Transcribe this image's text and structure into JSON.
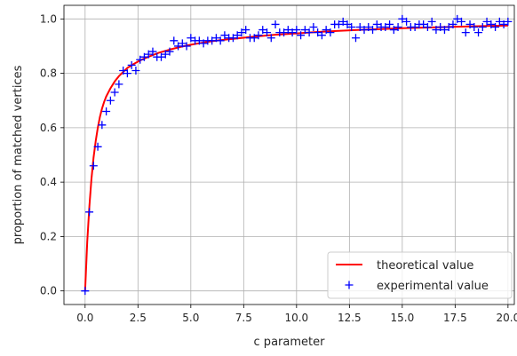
{
  "chart_data": {
    "type": "line",
    "xlabel": "c parameter",
    "ylabel": "proportion of matched vertices",
    "xlim": [
      -1,
      20.3
    ],
    "ylim": [
      -0.05,
      1.05
    ],
    "xticks": [
      0.0,
      2.5,
      5.0,
      7.5,
      10.0,
      12.5,
      15.0,
      17.5,
      20.0
    ],
    "xtick_labels": [
      "0.0",
      "2.5",
      "5.0",
      "7.5",
      "10.0",
      "12.5",
      "15.0",
      "17.5",
      "20.0"
    ],
    "yticks": [
      0.0,
      0.2,
      0.4,
      0.6,
      0.8,
      1.0
    ],
    "ytick_labels": [
      "0.0",
      "0.2",
      "0.4",
      "0.6",
      "0.8",
      "1.0"
    ],
    "grid": true,
    "legend_position": "bottom-right",
    "series": [
      {
        "name": "theoretical value",
        "style": "line",
        "color": "#ff0000",
        "x": [
          0.0,
          0.1,
          0.2,
          0.3,
          0.4,
          0.5,
          0.6,
          0.7,
          0.8,
          0.9,
          1.0,
          1.2,
          1.4,
          1.6,
          1.8,
          2.0,
          2.25,
          2.5,
          2.75,
          3.0,
          3.5,
          4.0,
          4.5,
          5.0,
          5.5,
          6.0,
          7.0,
          8.0,
          9.0,
          10.0,
          11.0,
          12.0,
          13.0,
          14.0,
          15.0,
          16.0,
          17.0,
          18.0,
          19.0,
          20.0
        ],
        "y": [
          0.0,
          0.18,
          0.31,
          0.41,
          0.49,
          0.55,
          0.6,
          0.64,
          0.67,
          0.695,
          0.715,
          0.745,
          0.77,
          0.79,
          0.805,
          0.82,
          0.832,
          0.843,
          0.853,
          0.861,
          0.876,
          0.887,
          0.897,
          0.905,
          0.912,
          0.918,
          0.927,
          0.935,
          0.942,
          0.947,
          0.952,
          0.956,
          0.96,
          0.963,
          0.966,
          0.968,
          0.97,
          0.972,
          0.974,
          0.976
        ]
      },
      {
        "name": "experimental value",
        "style": "marker-plus",
        "color": "#0000ff",
        "x": [
          0.0,
          0.2,
          0.4,
          0.6,
          0.8,
          1.0,
          1.2,
          1.4,
          1.6,
          1.8,
          2.0,
          2.2,
          2.4,
          2.6,
          2.8,
          3.0,
          3.2,
          3.4,
          3.6,
          3.8,
          4.0,
          4.2,
          4.4,
          4.6,
          4.8,
          5.0,
          5.2,
          5.4,
          5.6,
          5.8,
          6.0,
          6.2,
          6.4,
          6.6,
          6.8,
          7.0,
          7.2,
          7.4,
          7.6,
          7.8,
          8.0,
          8.2,
          8.4,
          8.6,
          8.8,
          9.0,
          9.2,
          9.4,
          9.6,
          9.8,
          10.0,
          10.2,
          10.4,
          10.6,
          10.8,
          11.0,
          11.2,
          11.4,
          11.6,
          11.8,
          12.0,
          12.2,
          12.4,
          12.6,
          12.8,
          13.0,
          13.2,
          13.4,
          13.6,
          13.8,
          14.0,
          14.2,
          14.4,
          14.6,
          14.8,
          15.0,
          15.2,
          15.4,
          15.6,
          15.8,
          16.0,
          16.2,
          16.4,
          16.6,
          16.8,
          17.0,
          17.2,
          17.4,
          17.6,
          17.8,
          18.0,
          18.2,
          18.4,
          18.6,
          18.8,
          19.0,
          19.2,
          19.4,
          19.6,
          19.8,
          20.0
        ],
        "y": [
          0.0,
          0.29,
          0.46,
          0.53,
          0.61,
          0.66,
          0.7,
          0.73,
          0.76,
          0.81,
          0.8,
          0.83,
          0.81,
          0.85,
          0.86,
          0.87,
          0.88,
          0.86,
          0.86,
          0.87,
          0.88,
          0.92,
          0.9,
          0.91,
          0.9,
          0.93,
          0.92,
          0.92,
          0.91,
          0.92,
          0.92,
          0.93,
          0.92,
          0.94,
          0.93,
          0.93,
          0.94,
          0.95,
          0.96,
          0.93,
          0.93,
          0.94,
          0.96,
          0.95,
          0.93,
          0.98,
          0.95,
          0.95,
          0.96,
          0.95,
          0.96,
          0.94,
          0.96,
          0.95,
          0.97,
          0.95,
          0.94,
          0.96,
          0.95,
          0.98,
          0.98,
          0.99,
          0.98,
          0.97,
          0.93,
          0.97,
          0.96,
          0.97,
          0.96,
          0.98,
          0.97,
          0.97,
          0.98,
          0.96,
          0.97,
          1.0,
          0.99,
          0.97,
          0.97,
          0.98,
          0.98,
          0.97,
          0.99,
          0.96,
          0.97,
          0.96,
          0.97,
          0.98,
          1.0,
          0.99,
          0.95,
          0.98,
          0.97,
          0.95,
          0.97,
          0.99,
          0.98,
          0.97,
          0.99,
          0.98,
          0.99
        ]
      }
    ]
  }
}
